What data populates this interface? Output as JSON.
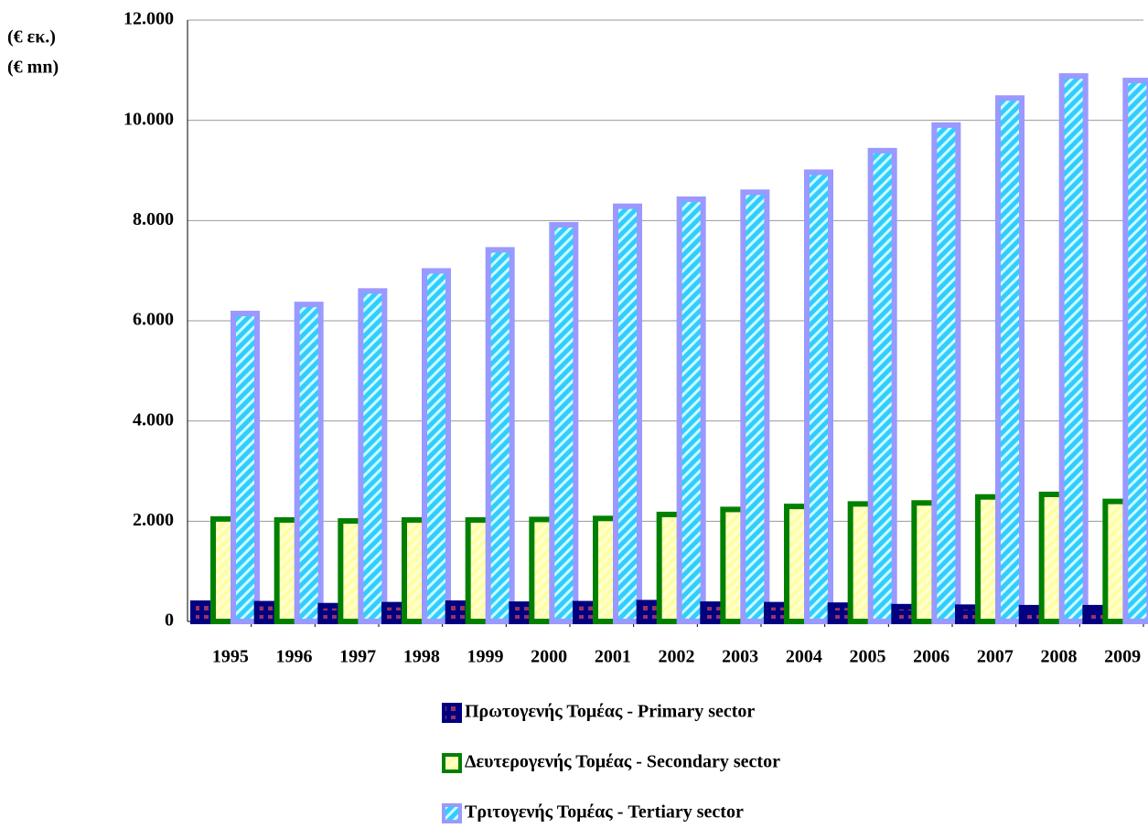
{
  "chart_data": {
    "type": "bar",
    "axis_labels": [
      "(€ εκ.)",
      "(€ mn)"
    ],
    "categories": [
      "1995",
      "1996",
      "1997",
      "1998",
      "1999",
      "2000",
      "2001",
      "2002",
      "2003",
      "2004",
      "2005",
      "2006",
      "2007",
      "2008",
      "2009"
    ],
    "series": [
      {
        "name": "Πρωτογενής Τομέας - Primary sector",
        "color": "#000080",
        "values": [
          420,
          410,
          370,
          390,
          420,
          400,
          410,
          430,
          400,
          390,
          380,
          350,
          340,
          330,
          330
        ]
      },
      {
        "name": "Δευτερογενής Τομέας - Secondary sector",
        "color": "#008000",
        "values": [
          2100,
          2080,
          2060,
          2080,
          2080,
          2090,
          2110,
          2190,
          2290,
          2350,
          2400,
          2420,
          2540,
          2590,
          2450
        ]
      },
      {
        "name": "Τριτογενής Τομέας - Tertiary sector",
        "color": "#9999ff",
        "values": [
          6200,
          6380,
          6650,
          7050,
          7470,
          7970,
          8340,
          8480,
          8620,
          9020,
          9450,
          9960,
          10500,
          10940,
          10850
        ]
      }
    ],
    "ylim": [
      0,
      12000
    ],
    "yticks": [
      0,
      {
        "value": 2000,
        "label": "2.000"
      },
      {
        "value": 4000,
        "label": "4.000"
      },
      {
        "value": 6000,
        "label": "6.000"
      },
      {
        "value": 8000,
        "label": "8.000"
      },
      {
        "value": 10000,
        "label": "10.000"
      },
      {
        "value": 12000,
        "label": "12.000"
      }
    ],
    "grid": true
  }
}
